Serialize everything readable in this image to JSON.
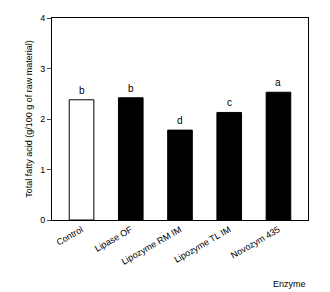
{
  "chart_data": {
    "type": "bar",
    "categories": [
      "Control",
      "Lipase OF",
      "Lipozyme RM IM",
      "Lipozyme TL IM",
      "Novozym 435"
    ],
    "values": [
      2.38,
      2.42,
      1.78,
      2.13,
      2.53
    ],
    "colors": [
      "#ffffff",
      "#000000",
      "#000000",
      "#000000",
      "#000000"
    ],
    "annotations": [
      "b",
      "b",
      "d",
      "c",
      "a"
    ],
    "x_label": "Enzyme",
    "y_label": "Total fatty acid (g/100 g of raw material)",
    "ylim": [
      0,
      4
    ],
    "yticks": [
      0,
      1,
      2,
      3,
      4
    ],
    "grid": false
  }
}
